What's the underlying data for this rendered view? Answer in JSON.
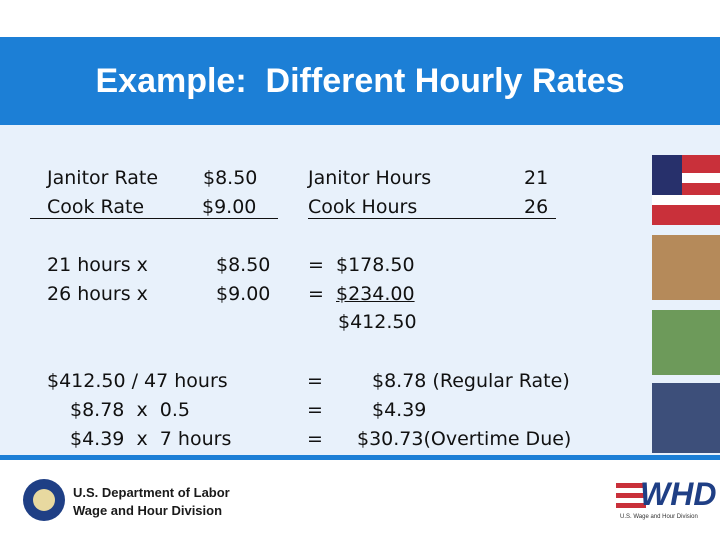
{
  "header": {
    "title": "Example:  Different Hourly Rates"
  },
  "rates": [
    {
      "label": "Janitor Rate",
      "rate": "$8.50",
      "hours_label": "Janitor Hours",
      "hours": "21"
    },
    {
      "label": "Cook Rate",
      "rate": "$9.00",
      "hours_label": "Cook Hours",
      "hours": "26"
    }
  ],
  "wages": [
    {
      "hours": "21 hours x",
      "rate": "$8.50",
      "eq": "=",
      "amount": "$178.50"
    },
    {
      "hours": "26 hours x",
      "rate": "$9.00",
      "eq": "=",
      "amount": "$234.00"
    }
  ],
  "wage_total": "$412.50",
  "overtime": [
    {
      "calc": "$412.50 / 47 hours",
      "eq": "=",
      "result": "$8.78 (Regular Rate)"
    },
    {
      "calc": "$8.78  x  0.5",
      "eq": "=",
      "result": "$4.39"
    },
    {
      "calc": "$4.39  x  7 hours",
      "eq": "=",
      "result": "$30.73(Overtime Due)"
    }
  ],
  "footer": {
    "agency": "U.S. Department of Labor",
    "division": "Wage and Hour Division",
    "logo": "WHD",
    "logo_caption": "U.S. Wage and Hour Division"
  }
}
